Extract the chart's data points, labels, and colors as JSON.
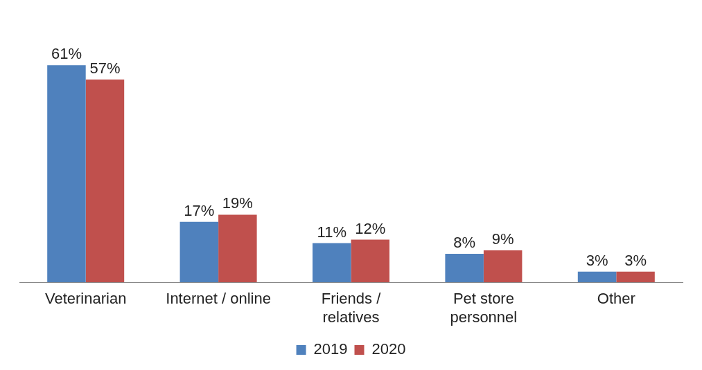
{
  "chart_data": {
    "type": "bar",
    "categories": [
      "Veterinarian",
      "Internet / online",
      "Friends /\nrelatives",
      "Pet store\npersonnel",
      "Other"
    ],
    "series": [
      {
        "name": "2019",
        "color": "#4f81bd",
        "values": [
          61,
          17,
          11,
          8,
          3
        ],
        "value_labels": [
          "61%",
          "17%",
          "11%",
          "8%",
          "3%"
        ]
      },
      {
        "name": "2020",
        "color": "#c0504d",
        "values": [
          57,
          19,
          12,
          9,
          3
        ],
        "value_labels": [
          "57%",
          "19%",
          "12%",
          "9%",
          "3%"
        ]
      }
    ],
    "grid": false,
    "legend": "bottom"
  }
}
